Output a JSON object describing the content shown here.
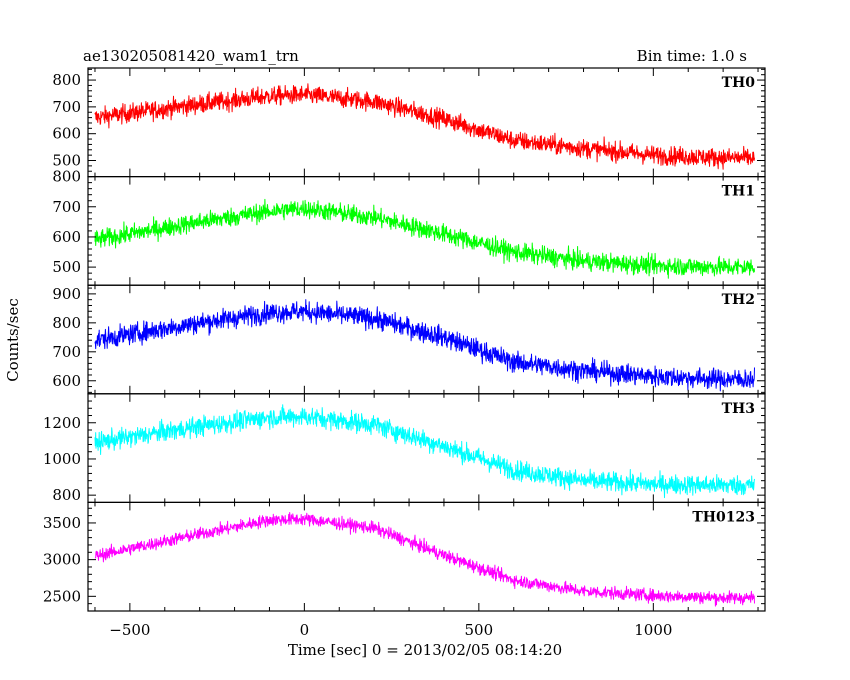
{
  "chart_data": {
    "type": "line",
    "title": "ae130205081420_wam1_trn",
    "subtitle": "Bin time: 1.0 s",
    "xlabel": "Time [sec] 0 = 2013/02/05 08:14:20",
    "ylabel": "Counts/sec",
    "xlim": [
      -620,
      1320
    ],
    "x_ticks": [
      -500,
      0,
      500,
      1000
    ],
    "x_tick_labels": [
      "−500",
      "0",
      "500",
      "1000"
    ],
    "grid": false,
    "panels": [
      {
        "name": "TH0",
        "color": "#ff0000",
        "ylim": [
          440,
          845
        ],
        "y_ticks": [
          500,
          600,
          700,
          800
        ],
        "y_tick_labels": [
          "500",
          "600",
          "700",
          "800"
        ],
        "noise": 45,
        "trend": [
          [
            -600,
            660
          ],
          [
            -300,
            710
          ],
          [
            -100,
            740
          ],
          [
            0,
            745
          ],
          [
            200,
            720
          ],
          [
            400,
            655
          ],
          [
            600,
            575
          ],
          [
            800,
            545
          ],
          [
            1000,
            520
          ],
          [
            1200,
            510
          ],
          [
            1290,
            510
          ]
        ]
      },
      {
        "name": "TH1",
        "color": "#00ff00",
        "ylim": [
          440,
          800
        ],
        "y_ticks": [
          500,
          600,
          700,
          800
        ],
        "y_tick_labels": [
          "500",
          "600",
          "700",
          "800"
        ],
        "noise": 40,
        "trend": [
          [
            -600,
            590
          ],
          [
            -300,
            650
          ],
          [
            -100,
            685
          ],
          [
            0,
            695
          ],
          [
            200,
            665
          ],
          [
            400,
            610
          ],
          [
            600,
            550
          ],
          [
            800,
            520
          ],
          [
            1000,
            505
          ],
          [
            1200,
            500
          ],
          [
            1290,
            500
          ]
        ]
      },
      {
        "name": "TH2",
        "color": "#0000ff",
        "ylim": [
          555,
          930
        ],
        "y_ticks": [
          600,
          700,
          800,
          900
        ],
        "y_tick_labels": [
          "600",
          "700",
          "800",
          "900"
        ],
        "noise": 45,
        "trend": [
          [
            -600,
            740
          ],
          [
            -300,
            800
          ],
          [
            -100,
            835
          ],
          [
            0,
            840
          ],
          [
            200,
            815
          ],
          [
            400,
            750
          ],
          [
            600,
            665
          ],
          [
            800,
            635
          ],
          [
            1000,
            615
          ],
          [
            1200,
            605
          ],
          [
            1290,
            605
          ]
        ]
      },
      {
        "name": "TH3",
        "color": "#00ffff",
        "ylim": [
          760,
          1360
        ],
        "y_ticks": [
          800,
          1000,
          1200
        ],
        "y_tick_labels": [
          "800",
          "1000",
          "1200"
        ],
        "noise": 70,
        "trend": [
          [
            -600,
            1090
          ],
          [
            -300,
            1180
          ],
          [
            -100,
            1230
          ],
          [
            0,
            1235
          ],
          [
            200,
            1190
          ],
          [
            400,
            1070
          ],
          [
            600,
            940
          ],
          [
            800,
            880
          ],
          [
            1000,
            860
          ],
          [
            1200,
            855
          ],
          [
            1290,
            855
          ]
        ]
      },
      {
        "name": "TH0123",
        "color": "#ff00ff",
        "ylim": [
          2300,
          3780
        ],
        "y_ticks": [
          2500,
          3000,
          3500
        ],
        "y_tick_labels": [
          "2500",
          "3000",
          "3500"
        ],
        "noise": 110,
        "trend": [
          [
            -600,
            3050
          ],
          [
            -300,
            3350
          ],
          [
            -100,
            3540
          ],
          [
            0,
            3555
          ],
          [
            200,
            3430
          ],
          [
            400,
            3060
          ],
          [
            600,
            2720
          ],
          [
            800,
            2570
          ],
          [
            1000,
            2510
          ],
          [
            1200,
            2480
          ],
          [
            1290,
            2480
          ]
        ]
      }
    ]
  }
}
